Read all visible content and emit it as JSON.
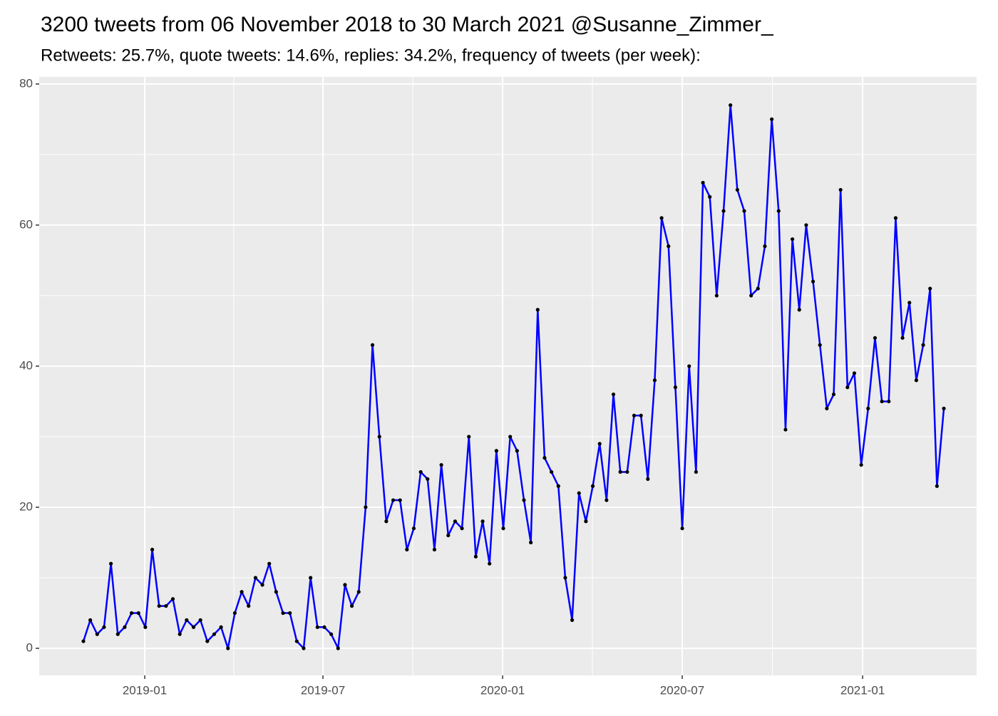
{
  "chart_data": {
    "type": "line",
    "title": "3200 tweets from 06 November 2018 to 30 March 2021 @Susanne_Zimmer_",
    "subtitle": "Retweets: 25.7%, quote tweets: 14.6%, replies: 34.2%, frequency of tweets (per week):",
    "series": [
      {
        "color": "#0000ff",
        "point_color": "#000000",
        "values": [
          1,
          4,
          2,
          3,
          12,
          2,
          3,
          5,
          5,
          3,
          14,
          6,
          6,
          7,
          2,
          4,
          3,
          4,
          1,
          2,
          3,
          0,
          5,
          8,
          6,
          10,
          9,
          12,
          8,
          5,
          5,
          1,
          0,
          10,
          3,
          3,
          2,
          0,
          9,
          6,
          8,
          20,
          43,
          30,
          18,
          21,
          21,
          14,
          17,
          25,
          24,
          14,
          26,
          16,
          18,
          17,
          30,
          13,
          18,
          12,
          28,
          17,
          30,
          28,
          21,
          15,
          48,
          27,
          25,
          23,
          10,
          4,
          22,
          18,
          23,
          29,
          21,
          36,
          25,
          25,
          33,
          33,
          24,
          38,
          61,
          57,
          37,
          17,
          40,
          25,
          66,
          64,
          50,
          62,
          77,
          65,
          62,
          50,
          51,
          57,
          75,
          62,
          31,
          58,
          48,
          60,
          52,
          43,
          34,
          36,
          65,
          37,
          39,
          26,
          34,
          44,
          35,
          35,
          61,
          44,
          49,
          38,
          43,
          51,
          23,
          34
        ]
      }
    ],
    "xlim": [
      -6.42,
      129.76
    ],
    "xticks": [
      {
        "value": 8.91,
        "label": "2019-01"
      },
      {
        "value": 34.8,
        "label": "2019-07"
      },
      {
        "value": 60.9,
        "label": "2020-01"
      },
      {
        "value": 86.99,
        "label": "2020-07"
      },
      {
        "value": 113.2,
        "label": "2021-01"
      }
    ],
    "ylim": [
      -3.84,
      81.0
    ],
    "yticks": [
      0,
      20,
      40,
      60,
      80
    ],
    "grid": true
  }
}
